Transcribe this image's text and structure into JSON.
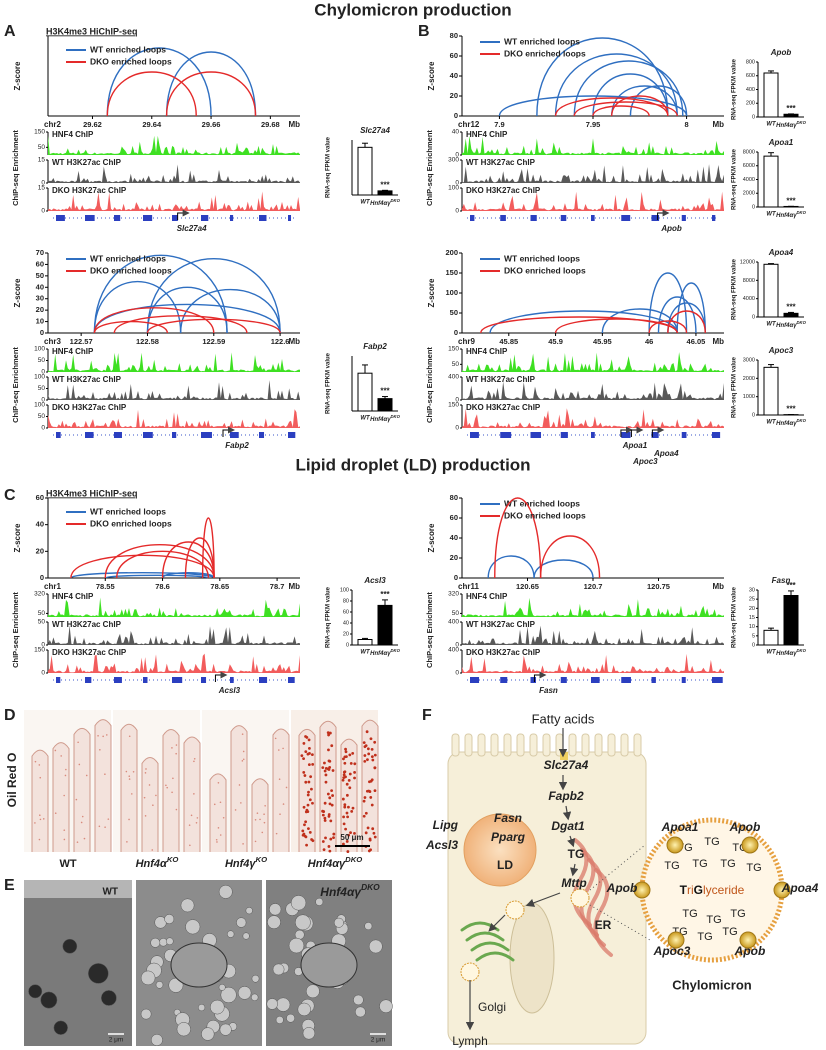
{
  "headings": {
    "chylomicron": "Chylomicron production",
    "lipid_droplet": "Lipid droplet (LD) production"
  },
  "panel_letters": [
    "A",
    "B",
    "C",
    "D",
    "E",
    "F"
  ],
  "tracks": [
    {
      "hic_title": "H3K4me3 HiChIP-seq",
      "ylabel": "Z-score",
      "chr": "chr2",
      "unit": "Mb",
      "xlim": [
        29.605,
        29.69
      ],
      "xticks": [
        29.62,
        29.64,
        29.66,
        29.68
      ],
      "ylim": [
        0,
        100
      ],
      "yticks": [],
      "series": [
        {
          "name": "WT enriched loops",
          "color": "#2f6fc1",
          "loops": [
            [
              29.625,
              29.66,
              85
            ],
            [
              29.645,
              29.675,
              80
            ]
          ]
        },
        {
          "name": "DKO enriched loops",
          "color": "#e42a2a",
          "loops": [
            [
              29.625,
              29.655,
              55
            ],
            [
              29.645,
              29.675,
              55
            ]
          ]
        }
      ],
      "chip_ylabel": "ChIP-seq Enrichment",
      "chip": [
        {
          "name": "HNF4 ChIP",
          "color": "#3ee022",
          "ticks": [
            150,
            50
          ]
        },
        {
          "name": "WT H3K27ac ChIP",
          "color": "#595959",
          "ticks": [
            15,
            0
          ]
        },
        {
          "name": "DKO H3K27ac ChIP",
          "color": "#f25c5c",
          "ticks": [
            15,
            0
          ]
        }
      ],
      "genes": [
        "Slc27a4"
      ],
      "bars": [
        {
          "title": "Slc27a4",
          "ylabel": "RNA-seq FPKM value",
          "categories": [
            "WT",
            "Hnf4αγ"
          ],
          "sup": "DKO",
          "fills": [
            "#ffffff",
            "#000000"
          ],
          "values": [
            520,
            45
          ],
          "errors": [
            45,
            6
          ],
          "ylim": [
            0,
            600
          ],
          "yticks": [],
          "significance": "***"
        }
      ]
    },
    {
      "ylabel": "Z-score",
      "chr": "chr3",
      "unit": "Mb",
      "xlim": [
        122.565,
        122.603
      ],
      "xticks": [
        122.57,
        122.58,
        122.59,
        122.6
      ],
      "ylim": [
        0,
        70
      ],
      "yticks": [
        0,
        10,
        20,
        30,
        40,
        50,
        60,
        70
      ],
      "series": [
        {
          "name": "WT enriched loops",
          "color": "#2f6fc1",
          "loops": [
            [
              122.572,
              122.592,
              68
            ],
            [
              122.58,
              122.6,
              65
            ],
            [
              122.572,
              122.585,
              45
            ],
            [
              122.58,
              122.592,
              40
            ],
            [
              122.585,
              122.6,
              38
            ],
            [
              122.572,
              122.6,
              25
            ]
          ]
        },
        {
          "name": "DKO enriched loops",
          "color": "#e42a2a",
          "loops": [
            [
              122.572,
              122.59,
              22
            ],
            [
              122.575,
              122.595,
              15
            ],
            [
              122.58,
              122.6,
              12
            ],
            [
              122.572,
              122.583,
              10
            ]
          ]
        }
      ],
      "chip_ylabel": "ChIP-seq Enrichment",
      "chip": [
        {
          "name": "HNF4 ChIP",
          "color": "#3ee022",
          "ticks": [
            100,
            50,
            0
          ]
        },
        {
          "name": "WT H3K27ac ChIP",
          "color": "#595959",
          "ticks": [
            100,
            50,
            0
          ]
        },
        {
          "name": "DKO H3K27ac ChIP",
          "color": "#f25c5c",
          "ticks": [
            100,
            50,
            0
          ]
        }
      ],
      "genes": [
        "Fabp2"
      ],
      "bars": [
        {
          "title": "Fabp2",
          "ylabel": "RNA-seq FPKM value",
          "categories": [
            "WT",
            "Hnf4αγ"
          ],
          "sup": "DKO",
          "fills": [
            "#ffffff",
            "#000000"
          ],
          "values": [
            5500,
            1800
          ],
          "errors": [
            1200,
            300
          ],
          "ylim": [
            0,
            8000
          ],
          "yticks": [],
          "significance": "***"
        }
      ]
    },
    {
      "ylabel": "Z-score",
      "chr": "chr12",
      "unit": "Mb",
      "xlim": [
        7.88,
        8.02
      ],
      "xticks": [
        7.9,
        7.95,
        8
      ],
      "ylim": [
        0,
        80
      ],
      "yticks": [
        0,
        20,
        40,
        60,
        80
      ],
      "series": [
        {
          "name": "WT enriched loops",
          "color": "#2f6fc1",
          "loops": [
            [
              7.92,
              7.99,
              78
            ],
            [
              7.93,
              7.995,
              62
            ],
            [
              7.94,
              7.998,
              55
            ],
            [
              7.95,
              7.99,
              42
            ],
            [
              7.96,
              7.995,
              30
            ],
            [
              7.9,
              8.0,
              20
            ],
            [
              7.97,
              8.0,
              30
            ]
          ]
        },
        {
          "name": "DKO enriched loops",
          "color": "#e42a2a",
          "loops": [
            [
              7.93,
              7.99,
              18
            ],
            [
              7.94,
              7.995,
              14
            ],
            [
              7.96,
              7.99,
              20
            ],
            [
              7.95,
              7.98,
              10
            ]
          ]
        }
      ],
      "chip_ylabel": "ChIP-seq Enrichment",
      "chip": [
        {
          "name": "HNF4 ChIP",
          "color": "#3ee022",
          "ticks": [
            40,
            0
          ]
        },
        {
          "name": "WT H3K27ac ChIP",
          "color": "#595959",
          "ticks": [
            300,
            0
          ]
        },
        {
          "name": "DKO H3K27ac ChIP",
          "color": "#f25c5c",
          "ticks": [
            100,
            0
          ]
        }
      ],
      "genes": [
        "Apob"
      ],
      "bars": [
        {
          "title": "Apob",
          "ylabel": "RNA-seq FPKM value",
          "categories": [
            "WT",
            "Hnf4αγ"
          ],
          "sup": "DKO",
          "fills": [
            "#ffffff",
            "#000000"
          ],
          "values": [
            640,
            40
          ],
          "errors": [
            30,
            5
          ],
          "ylim": [
            0,
            800
          ],
          "yticks": [
            0,
            200,
            400,
            600,
            800
          ],
          "significance": "***"
        },
        {
          "title": "Apoa1",
          "ylabel": "RNA-seq FPKM value",
          "categories": [
            "WT",
            "Hnf4αγ"
          ],
          "sup": "DKO",
          "fills": [
            "#ffffff",
            "#000000"
          ],
          "values": [
            7400,
            80
          ],
          "errors": [
            500,
            20
          ],
          "ylim": [
            0,
            8000
          ],
          "yticks": [
            0,
            2000,
            4000,
            6000,
            8000
          ],
          "significance": "***"
        }
      ]
    },
    {
      "ylabel": "Z-score",
      "chr": "chr9",
      "unit": "Mb",
      "xlim": [
        45.8,
        46.08
      ],
      "xticks": [
        45.85,
        45.9,
        45.95,
        46,
        46.05
      ],
      "ylim": [
        0,
        200
      ],
      "yticks": [
        0,
        50,
        100,
        150,
        200
      ],
      "series": [
        {
          "name": "WT enriched loops",
          "color": "#2f6fc1",
          "loops": [
            [
              45.83,
              46.03,
              55
            ],
            [
              45.95,
              46.03,
              60
            ],
            [
              46.0,
              46.04,
              150
            ],
            [
              46.03,
              46.06,
              125
            ],
            [
              46.01,
              46.05,
              90
            ],
            [
              46.02,
              46.06,
              75
            ]
          ]
        },
        {
          "name": "DKO enriched loops",
          "color": "#e42a2a",
          "loops": [
            [
              45.82,
              46.03,
              40
            ],
            [
              45.9,
              46.03,
              35
            ],
            [
              46.02,
              46.06,
              55
            ],
            [
              46.0,
              46.04,
              30
            ]
          ]
        }
      ],
      "chip_ylabel": "ChIP-seq Enrichment",
      "chip": [
        {
          "name": "HNF4 ChIP",
          "color": "#3ee022",
          "ticks": [
            150,
            50
          ]
        },
        {
          "name": "WT H3K27ac ChIP",
          "color": "#595959",
          "ticks": [
            400,
            0
          ]
        },
        {
          "name": "DKO H3K27ac ChIP",
          "color": "#f25c5c",
          "ticks": [
            150,
            0
          ]
        }
      ],
      "genes": [
        "Apoa1",
        "Apoa4",
        "Apoc3"
      ],
      "bars": [
        {
          "title": "Apoa4",
          "ylabel": "RNA-seq FPKM value",
          "categories": [
            "WT",
            "Hnf4αγ"
          ],
          "sup": "DKO",
          "fills": [
            "#ffffff",
            "#000000"
          ],
          "values": [
            11500,
            800
          ],
          "errors": [
            150,
            200
          ],
          "ylim": [
            0,
            12000
          ],
          "yticks": [
            0,
            4000,
            8000,
            12000
          ],
          "significance": "***"
        },
        {
          "title": "Apoc3",
          "ylabel": "RNA-seq FPKM value",
          "categories": [
            "WT",
            "Hnf4αγ"
          ],
          "sup": "DKO",
          "fills": [
            "#ffffff",
            "#000000"
          ],
          "values": [
            2600,
            20
          ],
          "errors": [
            150,
            5
          ],
          "ylim": [
            0,
            3000
          ],
          "yticks": [
            0,
            1000,
            2000,
            3000
          ],
          "significance": "***"
        }
      ]
    },
    {
      "hic_title": "H3K4me3 HiChIP-seq",
      "ylabel": "Z-score",
      "chr": "chr1",
      "unit": "Mb",
      "xlim": [
        78.5,
        78.72
      ],
      "xticks": [
        78.55,
        78.6,
        78.65,
        78.7
      ],
      "ylim": [
        0,
        60
      ],
      "yticks": [
        0,
        20,
        40,
        60
      ],
      "series": [
        {
          "name": "WT enriched loops",
          "color": "#2f6fc1",
          "loops": [
            [
              78.52,
              78.645,
              4
            ],
            [
              78.6,
              78.645,
              4
            ],
            [
              78.55,
              78.64,
              2
            ]
          ]
        },
        {
          "name": "DKO enriched loops",
          "color": "#e42a2a",
          "loops": [
            [
              78.52,
              78.645,
              17
            ],
            [
              78.55,
              78.645,
              25
            ],
            [
              78.6,
              78.645,
              27
            ],
            [
              78.62,
              78.645,
              30
            ],
            [
              78.635,
              78.645,
              45
            ],
            [
              78.56,
              78.64,
              20
            ]
          ]
        }
      ],
      "chip_ylabel": "ChIP-seq Enrichment",
      "chip": [
        {
          "name": "HNF4 ChIP",
          "color": "#3ee022",
          "ticks": [
            320,
            50
          ]
        },
        {
          "name": "WT H3K27ac ChIP",
          "color": "#595959",
          "ticks": [
            50,
            0
          ]
        },
        {
          "name": "DKO H3K27ac ChIP",
          "color": "#f25c5c",
          "ticks": [
            150,
            0
          ]
        }
      ],
      "genes": [
        "Acsl3"
      ],
      "bars": [
        {
          "title": "Acsl3",
          "ylabel": "RNA-seq FPKM value",
          "categories": [
            "WT",
            "Hnf4αγ"
          ],
          "sup": "DKO",
          "fills": [
            "#ffffff",
            "#000000"
          ],
          "values": [
            10,
            72
          ],
          "errors": [
            2,
            10
          ],
          "ylim": [
            0,
            100
          ],
          "yticks": [
            0,
            20,
            40,
            60,
            80,
            100
          ],
          "significance": "***"
        }
      ]
    },
    {
      "ylabel": "Z-score",
      "chr": "chr11",
      "unit": "Mb",
      "xlim": [
        120.6,
        120.8
      ],
      "xticks": [
        120.65,
        120.7,
        120.75
      ],
      "ylim": [
        0,
        80
      ],
      "yticks": [
        0,
        20,
        40,
        60,
        80
      ],
      "series": [
        {
          "name": "WT enriched loops",
          "color": "#2f6fc1",
          "loops": [
            [
              120.62,
              120.655,
              22
            ],
            [
              120.655,
              120.7,
              18
            ]
          ]
        },
        {
          "name": "DKO enriched loops",
          "color": "#e42a2a",
          "loops": [
            [
              120.625,
              120.66,
              80
            ],
            [
              120.66,
              120.705,
              42
            ]
          ]
        }
      ],
      "chip_ylabel": "ChIP-seq Enrichment",
      "chip": [
        {
          "name": "HNF4 ChIP",
          "color": "#3ee022",
          "ticks": [
            320,
            50
          ]
        },
        {
          "name": "WT H3K27ac ChIP",
          "color": "#595959",
          "ticks": [
            400,
            0
          ]
        },
        {
          "name": "DKO H3K27ac ChIP",
          "color": "#f25c5c",
          "ticks": [
            400,
            0
          ]
        }
      ],
      "genes": [
        "Fasn"
      ],
      "bars": [
        {
          "title": "Fasn",
          "ylabel": "RNA-seq FPKM value",
          "categories": [
            "WT",
            "Hnf4αγ"
          ],
          "sup": "DKO",
          "fills": [
            "#ffffff",
            "#000000"
          ],
          "values": [
            8,
            27
          ],
          "errors": [
            1.2,
            2.5
          ],
          "ylim": [
            0,
            30
          ],
          "yticks": [
            0,
            5,
            10,
            15,
            20,
            25,
            30
          ],
          "significance": "***"
        }
      ]
    }
  ],
  "oil_red": {
    "stain": "Oil Red O",
    "columns": [
      {
        "name": "WT"
      },
      {
        "name": "Hnf4α",
        "sup": "KO"
      },
      {
        "name": "Hnf4γ",
        "sup": "KO"
      },
      {
        "name": "Hnf4αγ",
        "sup": "DKO"
      }
    ],
    "scale": "50 μm"
  },
  "em": {
    "columns": [
      {
        "name": "WT"
      },
      {
        "name": "Hnf4αγ",
        "sup": "DKO"
      }
    ],
    "scale": "2 μm"
  },
  "model": {
    "input": "Fatty acids",
    "pathway": [
      "Slc27a4",
      "Fapb2",
      "Dgat1",
      "TG",
      "Mttp"
    ],
    "ld_genes": [
      "Lipg",
      "Acsl3",
      "Fasn",
      "Pparg"
    ],
    "ld": "LD",
    "er": "ER",
    "golgi": "Golgi",
    "output": "Lymph",
    "apolipoproteins": [
      "Apoa1",
      "Apob",
      "Apob",
      "Apoa4",
      "Apoc3",
      "Apob"
    ],
    "tg": "TG",
    "core": [
      "T",
      "ri",
      "G",
      "lyceride"
    ],
    "particle": "Chylomicron"
  }
}
